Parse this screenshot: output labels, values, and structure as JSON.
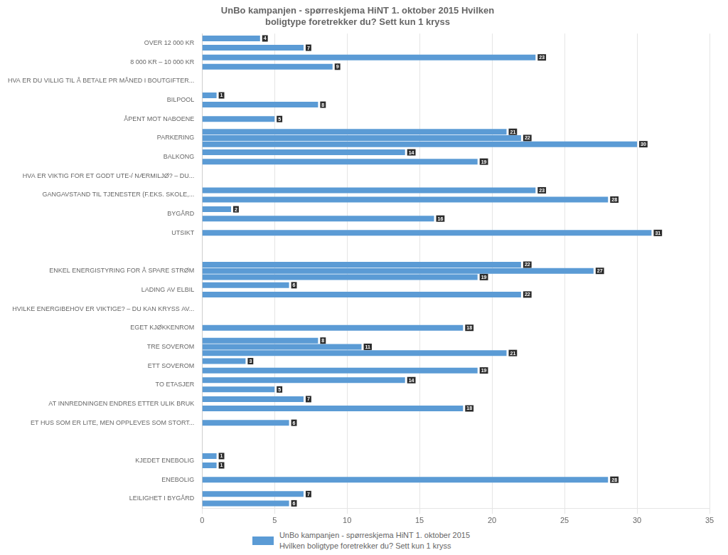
{
  "chart_data": {
    "type": "bar",
    "orientation": "horizontal",
    "title": "UnBo kampanjen - spørreskjema HiNT 1. oktober 2015 Hvilken\nboligtype foretrekker du? Sett kun 1 kryss",
    "categories": [
      "OVER 12 000 KR",
      "8 000 KR – 10 000 KR",
      "HVA ER DU VILLIG TIL Å BETALE PR MÅNED I BOUTGIFTER...",
      "BILPOOL",
      "ÅPENT MOT NABOENE",
      "PARKERING",
      "BALKONG",
      "HVA ER VIKTIG FOR ET GODT UTE-/ NÆRMILJØ? – DU...",
      "GANGAVSTAND TIL TJENESTER (F.EKS. SKOLE,...",
      "BYGÅRD",
      "UTSIKT",
      null,
      "ENKEL ENERGISTYRING FOR Å SPARE STRØM",
      "LADING AV ELBIL",
      "HVILKE ENERGIBEHOV ER VIKTIGE? – DU KAN KRYSS AV...",
      "EGET KJØKKENROM",
      "TRE SOVEROM",
      "ETT SOVEROM",
      "TO ETASJER",
      "AT INNREDNINGEN ENDRES ETTER ULIK BRUK",
      "ET HUS SOM ER LITE, MEN OPPLEVES SOM STORT...",
      null,
      "KJEDET ENEBOLIG",
      "ENEBOLIG",
      "LEILIGHET I BYGÅRD"
    ],
    "series": [
      {
        "name": "UnBo kampanjen - spørreskjema HiNT 1. oktober 2015\nHvilken boligtype foretrekker du? Sett kun 1 kryss",
        "color": "#5B9BD5",
        "values": [
          [
            4,
            7
          ],
          [
            23,
            9
          ],
          [],
          [
            1,
            8
          ],
          [
            5
          ],
          [
            21,
            22,
            30
          ],
          [
            14,
            19
          ],
          [],
          [
            23,
            28
          ],
          [
            2,
            16
          ],
          [
            31
          ],
          [],
          [
            22,
            27,
            19
          ],
          [
            6,
            22
          ],
          [],
          [
            18
          ],
          [
            8,
            11,
            21
          ],
          [
            3,
            19
          ],
          [
            14,
            5
          ],
          [
            7,
            18
          ],
          [
            6
          ],
          [],
          [
            1,
            1
          ],
          [
            28
          ],
          [
            7,
            6
          ]
        ]
      }
    ],
    "xlim": [
      0,
      35
    ],
    "xticks": [
      0,
      5,
      10,
      15,
      20,
      25,
      30,
      35
    ],
    "grid": true,
    "legend": "bottom",
    "data_labels": true
  }
}
